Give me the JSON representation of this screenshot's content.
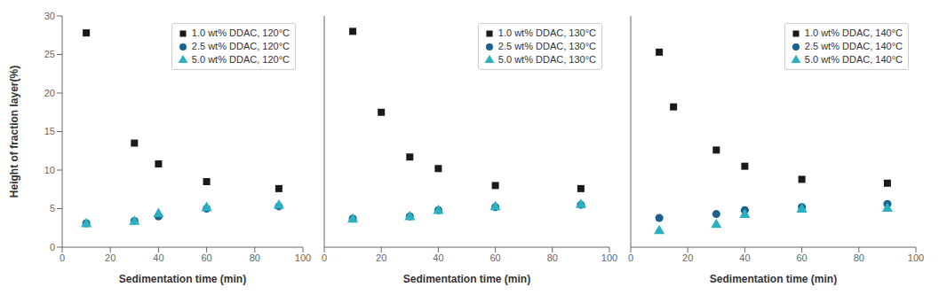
{
  "chart_data": [
    {
      "type": "scatter",
      "xlabel": "Sedimentation time (min)",
      "ylabel": "Height of fraction layer(%)",
      "xlim": [
        0,
        100
      ],
      "ylim": [
        0,
        30
      ],
      "xticks": [
        0,
        20,
        40,
        60,
        80,
        100
      ],
      "yticks": [
        0,
        5,
        10,
        15,
        20,
        25,
        30
      ],
      "grid": false,
      "legend": "upper right",
      "series": [
        {
          "name": "1.0 wt% DDAC, 120°C",
          "color": "#1a1a1a",
          "marker": "square",
          "x": [
            10,
            30,
            40,
            60,
            90
          ],
          "values": [
            27.8,
            13.5,
            10.8,
            8.5,
            7.6
          ]
        },
        {
          "name": "2.5 wt% DDAC, 120°C",
          "color": "#1a6090",
          "marker": "circle",
          "x": [
            10,
            30,
            40,
            60,
            90
          ],
          "values": [
            3.1,
            3.4,
            4.0,
            5.0,
            5.3
          ]
        },
        {
          "name": "5.0 wt% DDAC, 120°C",
          "color": "#2ab0c0",
          "marker": "triangle",
          "x": [
            10,
            30,
            40,
            60,
            90
          ],
          "values": [
            3.0,
            3.3,
            4.3,
            5.1,
            5.4
          ]
        }
      ]
    },
    {
      "type": "scatter",
      "xlabel": "Sedimentation time (min)",
      "xlim": [
        0,
        100
      ],
      "ylim": [
        0,
        30
      ],
      "xticks": [
        0,
        20,
        40,
        60,
        80,
        100
      ],
      "yticks": [
        0,
        5,
        10,
        15,
        20,
        25,
        30
      ],
      "grid": false,
      "legend": "upper right",
      "tick_labels": "x",
      "series": [
        {
          "name": "1.0 wt% DDAC, 130°C",
          "color": "#1a1a1a",
          "marker": "square",
          "x": [
            10,
            20,
            30,
            40,
            60,
            90
          ],
          "values": [
            28.0,
            17.5,
            11.7,
            10.2,
            8.0,
            7.6
          ]
        },
        {
          "name": "2.5 wt% DDAC, 130°C",
          "color": "#1a6090",
          "marker": "circle",
          "x": [
            10,
            30,
            40,
            60,
            90
          ],
          "values": [
            3.7,
            4.0,
            4.8,
            5.2,
            5.5
          ]
        },
        {
          "name": "5.0 wt% DDAC, 130°C",
          "color": "#2ab0c0",
          "marker": "triangle",
          "x": [
            10,
            30,
            40,
            60,
            90
          ],
          "values": [
            3.6,
            3.9,
            4.7,
            5.2,
            5.5
          ]
        }
      ]
    },
    {
      "type": "scatter",
      "xlabel": "Sedimentation time (min)",
      "xlim": [
        0,
        100
      ],
      "ylim": [
        0,
        30
      ],
      "xticks": [
        0,
        20,
        40,
        60,
        80,
        100
      ],
      "yticks": [
        0,
        5,
        10,
        15,
        20,
        25,
        30
      ],
      "grid": false,
      "legend": "upper right",
      "tick_labels": "x",
      "series": [
        {
          "name": "1.0 wt% DDAC, 140°C",
          "color": "#1a1a1a",
          "marker": "square",
          "x": [
            10,
            15,
            30,
            40,
            60,
            90
          ],
          "values": [
            25.3,
            18.2,
            12.6,
            10.5,
            8.8,
            8.3
          ]
        },
        {
          "name": "2.5 wt% DDAC, 140°C",
          "color": "#1a6090",
          "marker": "circle",
          "x": [
            10,
            30,
            40,
            60,
            90
          ],
          "values": [
            3.8,
            4.3,
            4.8,
            5.2,
            5.6
          ]
        },
        {
          "name": "5.0 wt% DDAC, 140°C",
          "color": "#2ab0c0",
          "marker": "triangle",
          "x": [
            10,
            30,
            40,
            60,
            90
          ],
          "values": [
            2.1,
            2.9,
            4.2,
            4.9,
            5.0
          ]
        }
      ]
    }
  ]
}
